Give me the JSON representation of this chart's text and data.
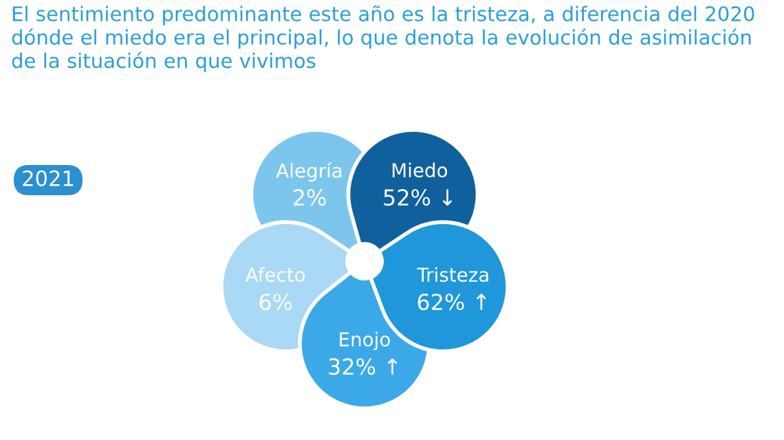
{
  "chart_data": {
    "type": "other",
    "title": "El sentimiento predominante este año es la tristeza, a diferencia del 2020 dónde el miedo era el principal, lo que denota la evolución de asimilación de la situación en que vivimos",
    "annotations": [
      "2021"
    ],
    "categories": [
      "Alegría",
      "Miedo",
      "Tristeza",
      "Enojo",
      "Afecto"
    ],
    "values": [
      2,
      52,
      62,
      32,
      6
    ],
    "value_labels": [
      "2%",
      "52% ↓",
      "62% ↑",
      "32% ↑",
      "6%"
    ],
    "colors": [
      "#7cc6ee",
      "#11609e",
      "#1f97da",
      "#3ba9e8",
      "#a9d9f5"
    ]
  }
}
